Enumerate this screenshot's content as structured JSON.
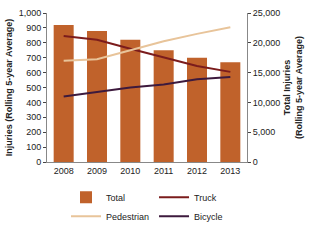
{
  "chart_data": {
    "type": "bar",
    "categories": [
      "2008",
      "2009",
      "2010",
      "2011",
      "2012",
      "2013"
    ],
    "ylabel": "Injuries (Rolling 5-year Average)",
    "y2label": "Total Injuries (Rolling 5-year Average)",
    "ylim": [
      0,
      1000
    ],
    "yticks": [
      0,
      100,
      200,
      300,
      400,
      500,
      600,
      700,
      800,
      900,
      {
        "value": 1000,
        "label": "1,000"
      }
    ],
    "y2lim": [
      0,
      25000
    ],
    "y2ticks": [
      0,
      {
        "value": 5000,
        "label": "5,000"
      },
      {
        "value": 10000,
        "label": "10,000"
      },
      {
        "value": 15000,
        "label": "15,000"
      },
      {
        "value": 20000,
        "label": "20,000"
      },
      {
        "value": 25000,
        "label": "25,000"
      }
    ],
    "legend": "bottom",
    "grid": false,
    "series": [
      {
        "name": "Total",
        "type": "bar",
        "axis": "y2",
        "color": "#c0622b",
        "values": [
          23000,
          22000,
          20500,
          18750,
          17500,
          16750
        ]
      },
      {
        "name": "Truck",
        "type": "line",
        "color": "#7b1c1c",
        "values": [
          845,
          820,
          760,
          700,
          645,
          605
        ]
      },
      {
        "name": "Pedestrian",
        "type": "line",
        "color": "#e8c49a",
        "values": [
          680,
          690,
          750,
          810,
          860,
          905
        ]
      },
      {
        "name": "Bicycle",
        "type": "line",
        "color": "#3d1a3d",
        "values": [
          440,
          470,
          500,
          520,
          555,
          570
        ]
      }
    ]
  }
}
